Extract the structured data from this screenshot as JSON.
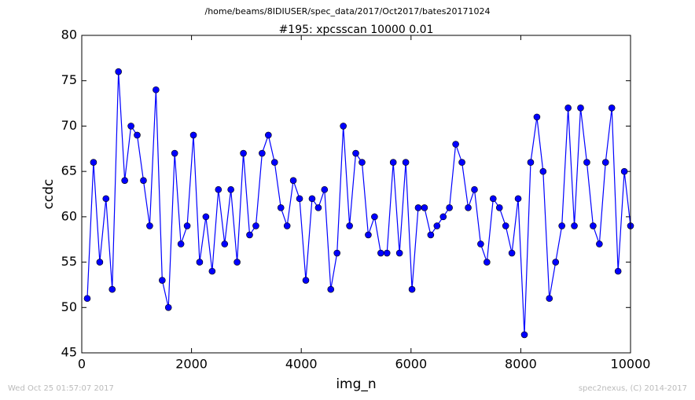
{
  "chart_data": {
    "type": "line",
    "suptitle": "/home/beams/8IDIUSER/spec_data/2017/Oct2017/bates20171024",
    "title": "#195: xpcsscan 10000 0.01",
    "x_label": "img_n",
    "y_label": "ccdc",
    "footnotes": [
      "Wed Oct 25 01:57:07 2017",
      "spec2nexus, (C) 2014-2017"
    ],
    "x": [
      100,
      214,
      328,
      441,
      555,
      669,
      783,
      897,
      1010,
      1124,
      1238,
      1352,
      1466,
      1579,
      1693,
      1807,
      1921,
      2035,
      2148,
      2262,
      2376,
      2490,
      2604,
      2717,
      2831,
      2945,
      3059,
      3173,
      3286,
      3400,
      3514,
      3628,
      3742,
      3855,
      3969,
      4083,
      4197,
      4311,
      4424,
      4538,
      4652,
      4766,
      4880,
      4993,
      5107,
      5221,
      5335,
      5449,
      5562,
      5676,
      5790,
      5904,
      6018,
      6131,
      6245,
      6359,
      6473,
      6587,
      6700,
      6814,
      6928,
      7042,
      7156,
      7269,
      7383,
      7497,
      7611,
      7725,
      7838,
      7952,
      8066,
      8180,
      8294,
      8407,
      8521,
      8635,
      8749,
      8863,
      8976,
      9090,
      9204,
      9318,
      9432,
      9545,
      9659,
      9773,
      9887,
      10000
    ],
    "series": [
      {
        "color": "#0000ff",
        "values": [
          51,
          66,
          55,
          62,
          52,
          76,
          64,
          70,
          69,
          64,
          59,
          74,
          53,
          50,
          67,
          57,
          59,
          69,
          55,
          60,
          54,
          63,
          57,
          63,
          55,
          67,
          58,
          59,
          67,
          69,
          66,
          61,
          59,
          64,
          62,
          53,
          62,
          61,
          63,
          52,
          56,
          70,
          59,
          67,
          66,
          58,
          60,
          56,
          56,
          66,
          56,
          66,
          52,
          61,
          61,
          58,
          59,
          60,
          61,
          68,
          66,
          61,
          63,
          57,
          55,
          62,
          61,
          59,
          56,
          62,
          47,
          66,
          71,
          65,
          51,
          55,
          59,
          72,
          59,
          72,
          66,
          59,
          57,
          66,
          72,
          54,
          65,
          59
        ]
      }
    ],
    "xlim": [
      0,
      10000
    ],
    "xticks": [
      0,
      2000,
      4000,
      6000,
      8000,
      10000
    ],
    "ylim": [
      45,
      80
    ],
    "yticks": [
      45,
      50,
      55,
      60,
      65,
      70,
      75,
      80
    ],
    "grid": false
  }
}
